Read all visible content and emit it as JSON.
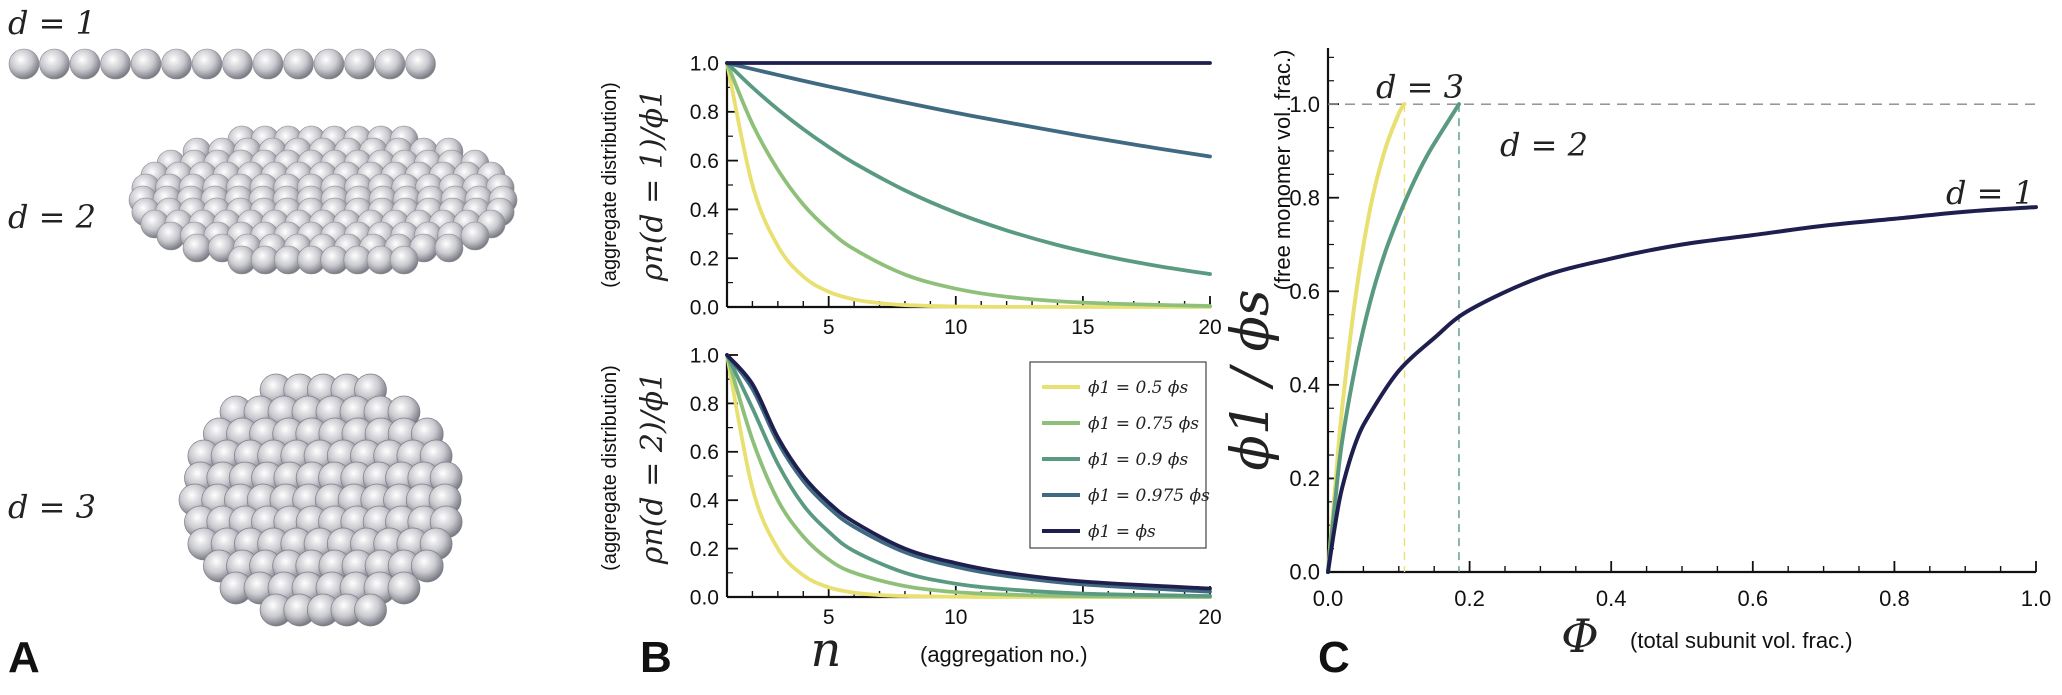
{
  "panel_a": {
    "letter": "A",
    "labels": [
      "d = 1",
      "d = 2",
      "d = 3"
    ],
    "sphere_color": "#c8c8cc"
  },
  "panel_b": {
    "letter": "B",
    "xlabel_symbol": "n",
    "xlabel_note": "(aggregation no.)",
    "legend": [
      {
        "label": "ϕ1 = 0.5 ϕs",
        "color": "#e8e070"
      },
      {
        "label": "ϕ1 = 0.75 ϕs",
        "color": "#8fc07a"
      },
      {
        "label": "ϕ1 = 0.9 ϕs",
        "color": "#5a9a80"
      },
      {
        "label": "ϕ1 = 0.975 ϕs",
        "color": "#3f6a82"
      },
      {
        "label": "ϕ1 = ϕs",
        "color": "#1e1f4e"
      }
    ]
  },
  "panel_c": {
    "letter": "C",
    "xlabel_symbol": "Φ",
    "xlabel_note": "(total subunit vol. frac.)",
    "ylabel_symbol": "ϕ1 / ϕs",
    "ylabel_note": "(free monomer vol. frac.)",
    "curve_labels": [
      "d = 3",
      "d = 2",
      "d = 1"
    ]
  },
  "chart_data": [
    {
      "type": "line",
      "id": "B-top",
      "ylabel": "ρn(d = 1)/ϕ1",
      "ylabel_note": "(aggregate distribution)",
      "xlim": [
        1,
        20
      ],
      "ylim": [
        0,
        1.0
      ],
      "xticks": [
        5,
        10,
        15,
        20
      ],
      "yticks": [
        "0.0",
        "0.2",
        "0.4",
        "0.6",
        "0.8",
        "1.0"
      ],
      "series": [
        {
          "name": "ϕ1 = 0.5 ϕs",
          "x": [
            1,
            2,
            3,
            4,
            5,
            6,
            7,
            8,
            10,
            12,
            15,
            20
          ],
          "y": [
            1.0,
            0.5,
            0.25,
            0.125,
            0.0625,
            0.031,
            0.016,
            0.008,
            0.002,
            0.0005,
            0.0,
            0.0
          ]
        },
        {
          "name": "ϕ1 = 0.75 ϕs",
          "x": [
            1,
            2,
            3,
            4,
            5,
            6,
            8,
            10,
            12,
            15,
            20
          ],
          "y": [
            1.0,
            0.75,
            0.5625,
            0.42,
            0.316,
            0.237,
            0.133,
            0.075,
            0.042,
            0.018,
            0.004
          ]
        },
        {
          "name": "ϕ1 = 0.9 ϕs",
          "x": [
            1,
            2,
            3,
            4,
            5,
            6,
            8,
            10,
            12,
            14,
            16,
            18,
            20
          ],
          "y": [
            1.0,
            0.9,
            0.81,
            0.729,
            0.656,
            0.59,
            0.478,
            0.387,
            0.314,
            0.254,
            0.206,
            0.167,
            0.135
          ]
        },
        {
          "name": "ϕ1 = 0.975 ϕs",
          "x": [
            1,
            3,
            5,
            8,
            10,
            12,
            15,
            18,
            20
          ],
          "y": [
            1.0,
            0.951,
            0.904,
            0.838,
            0.796,
            0.757,
            0.701,
            0.649,
            0.617
          ]
        },
        {
          "name": "ϕ1 = ϕs",
          "x": [
            1,
            20
          ],
          "y": [
            1.0,
            1.0
          ]
        }
      ]
    },
    {
      "type": "line",
      "id": "B-bottom",
      "ylabel": "ρn(d = 2)/ϕ1",
      "ylabel_note": "(aggregate distribution)",
      "xlim": [
        1,
        20
      ],
      "ylim": [
        0,
        1.0
      ],
      "xticks": [
        5,
        10,
        15,
        20
      ],
      "yticks": [
        "0.0",
        "0.2",
        "0.4",
        "0.6",
        "0.8",
        "1.0"
      ],
      "series": [
        {
          "name": "ϕ1 = 0.5 ϕs",
          "x": [
            1,
            2,
            3,
            4,
            5,
            6,
            7,
            8,
            10,
            12,
            20
          ],
          "y": [
            1.0,
            0.45,
            0.2,
            0.09,
            0.04,
            0.018,
            0.008,
            0.004,
            0.001,
            0.0,
            0.0
          ]
        },
        {
          "name": "ϕ1 = 0.75 ϕs",
          "x": [
            1,
            2,
            3,
            4,
            5,
            6,
            8,
            10,
            12,
            15,
            20
          ],
          "y": [
            1.0,
            0.65,
            0.4,
            0.25,
            0.155,
            0.1,
            0.045,
            0.02,
            0.01,
            0.003,
            0.0
          ]
        },
        {
          "name": "ϕ1 = 0.9 ϕs",
          "x": [
            1,
            2,
            3,
            4,
            5,
            6,
            8,
            10,
            12,
            15,
            20
          ],
          "y": [
            1.0,
            0.78,
            0.55,
            0.38,
            0.27,
            0.19,
            0.1,
            0.055,
            0.032,
            0.014,
            0.004
          ]
        },
        {
          "name": "ϕ1 = 0.975 ϕs",
          "x": [
            1,
            2,
            3,
            4,
            5,
            6,
            8,
            10,
            12,
            15,
            20
          ],
          "y": [
            1.0,
            0.86,
            0.64,
            0.48,
            0.37,
            0.29,
            0.185,
            0.125,
            0.087,
            0.052,
            0.022
          ]
        },
        {
          "name": "ϕ1 = ϕs",
          "x": [
            1,
            2,
            3,
            4,
            5,
            6,
            8,
            10,
            12,
            15,
            20
          ],
          "y": [
            1.0,
            0.88,
            0.66,
            0.5,
            0.39,
            0.31,
            0.2,
            0.14,
            0.1,
            0.064,
            0.035
          ]
        }
      ]
    },
    {
      "type": "line",
      "id": "C",
      "xlabel": "Φ",
      "ylabel": "ϕ1/ϕs",
      "xlim": [
        0,
        1.0
      ],
      "ylim": [
        0,
        1.12
      ],
      "xticks": [
        "0.0",
        "0.2",
        "0.4",
        "0.6",
        "0.8",
        "1.0"
      ],
      "yticks": [
        "0.0",
        "0.2",
        "0.4",
        "0.6",
        "0.8",
        "1.0"
      ],
      "reference_lines": {
        "y": 1.0,
        "x_d3": 0.108,
        "x_d2": 0.185
      },
      "series": [
        {
          "name": "d = 3",
          "color": "#e8e070",
          "x": [
            0.0,
            0.01,
            0.02,
            0.04,
            0.06,
            0.08,
            0.1,
            0.108
          ],
          "y": [
            0.0,
            0.18,
            0.35,
            0.6,
            0.78,
            0.9,
            0.98,
            1.0
          ]
        },
        {
          "name": "d = 2",
          "color": "#5a9a80",
          "x": [
            0.0,
            0.01,
            0.02,
            0.04,
            0.06,
            0.08,
            0.1,
            0.12,
            0.14,
            0.16,
            0.185
          ],
          "y": [
            0.0,
            0.15,
            0.28,
            0.45,
            0.58,
            0.68,
            0.76,
            0.83,
            0.89,
            0.94,
            1.0
          ]
        },
        {
          "name": "d = 1",
          "color": "#1e1f4e",
          "x": [
            0.0,
            0.01,
            0.02,
            0.04,
            0.06,
            0.1,
            0.15,
            0.2,
            0.3,
            0.4,
            0.5,
            0.6,
            0.7,
            0.8,
            0.9,
            1.0
          ],
          "y": [
            0.0,
            0.1,
            0.18,
            0.28,
            0.34,
            0.43,
            0.5,
            0.56,
            0.63,
            0.67,
            0.7,
            0.72,
            0.74,
            0.755,
            0.77,
            0.78
          ]
        }
      ]
    }
  ]
}
